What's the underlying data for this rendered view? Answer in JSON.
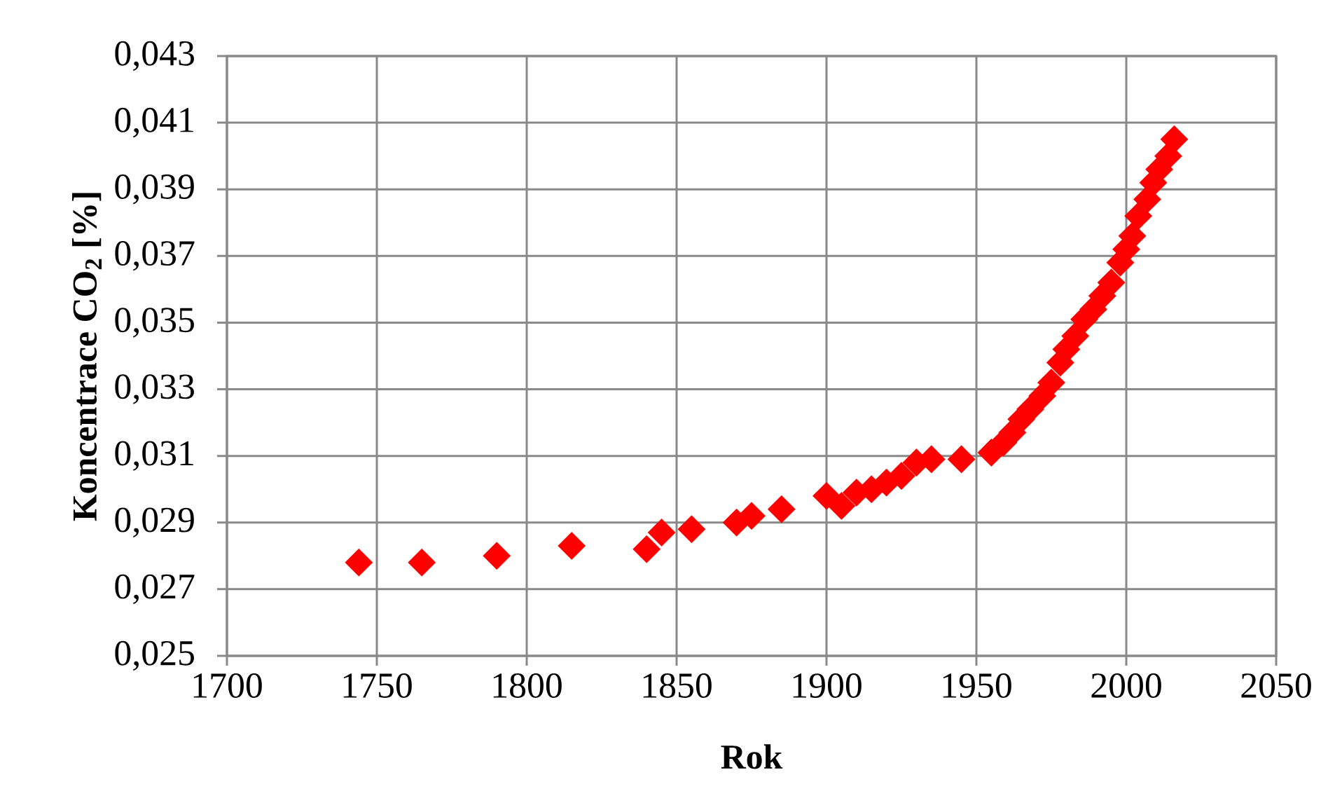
{
  "chart_data": {
    "type": "scatter",
    "xlabel": "Rok",
    "ylabel": "Koncentrace CO$_{2}$ [%]",
    "x": [
      1744,
      1765,
      1790,
      1815,
      1840,
      1845,
      1855,
      1870,
      1875,
      1885,
      1900,
      1905,
      1910,
      1915,
      1920,
      1925,
      1930,
      1935,
      1945,
      1955,
      1959,
      1962,
      1965,
      1968,
      1972,
      1975,
      1978,
      1980,
      1983,
      1986,
      1989,
      1992,
      1995,
      1998,
      2000,
      2002,
      2004,
      2007,
      2009,
      2011,
      2014,
      2016
    ],
    "values": [
      0.0278,
      0.0278,
      0.028,
      0.0283,
      0.0282,
      0.0287,
      0.0288,
      0.029,
      0.0292,
      0.0294,
      0.0298,
      0.0295,
      0.0299,
      0.03,
      0.0302,
      0.0304,
      0.0308,
      0.0309,
      0.0309,
      0.0311,
      0.0314,
      0.0317,
      0.0321,
      0.0324,
      0.0328,
      0.0332,
      0.0338,
      0.0342,
      0.0346,
      0.0351,
      0.0354,
      0.0358,
      0.0362,
      0.0368,
      0.0372,
      0.0376,
      0.0382,
      0.0387,
      0.0392,
      0.0396,
      0.04,
      0.0405
    ],
    "color": "#ff0000",
    "marker": "diamond",
    "grid": true,
    "xlim": [
      1700,
      2050
    ],
    "xticks": [
      1700,
      1750,
      1800,
      1850,
      1900,
      1950,
      2000,
      2050
    ],
    "ylim": [
      0.025,
      0.043
    ],
    "yticks": [
      {
        "value": 0.025,
        "label": "0,025"
      },
      {
        "value": 0.027,
        "label": "0,027"
      },
      {
        "value": 0.029,
        "label": "0,029"
      },
      {
        "value": 0.031,
        "label": "0,031"
      },
      {
        "value": 0.033,
        "label": "0,033"
      },
      {
        "value": 0.035,
        "label": "0,035"
      },
      {
        "value": 0.037,
        "label": "0,037"
      },
      {
        "value": 0.039,
        "label": "0,039"
      },
      {
        "value": 0.041,
        "label": "0,041"
      },
      {
        "value": 0.043,
        "label": "0,043"
      }
    ]
  }
}
